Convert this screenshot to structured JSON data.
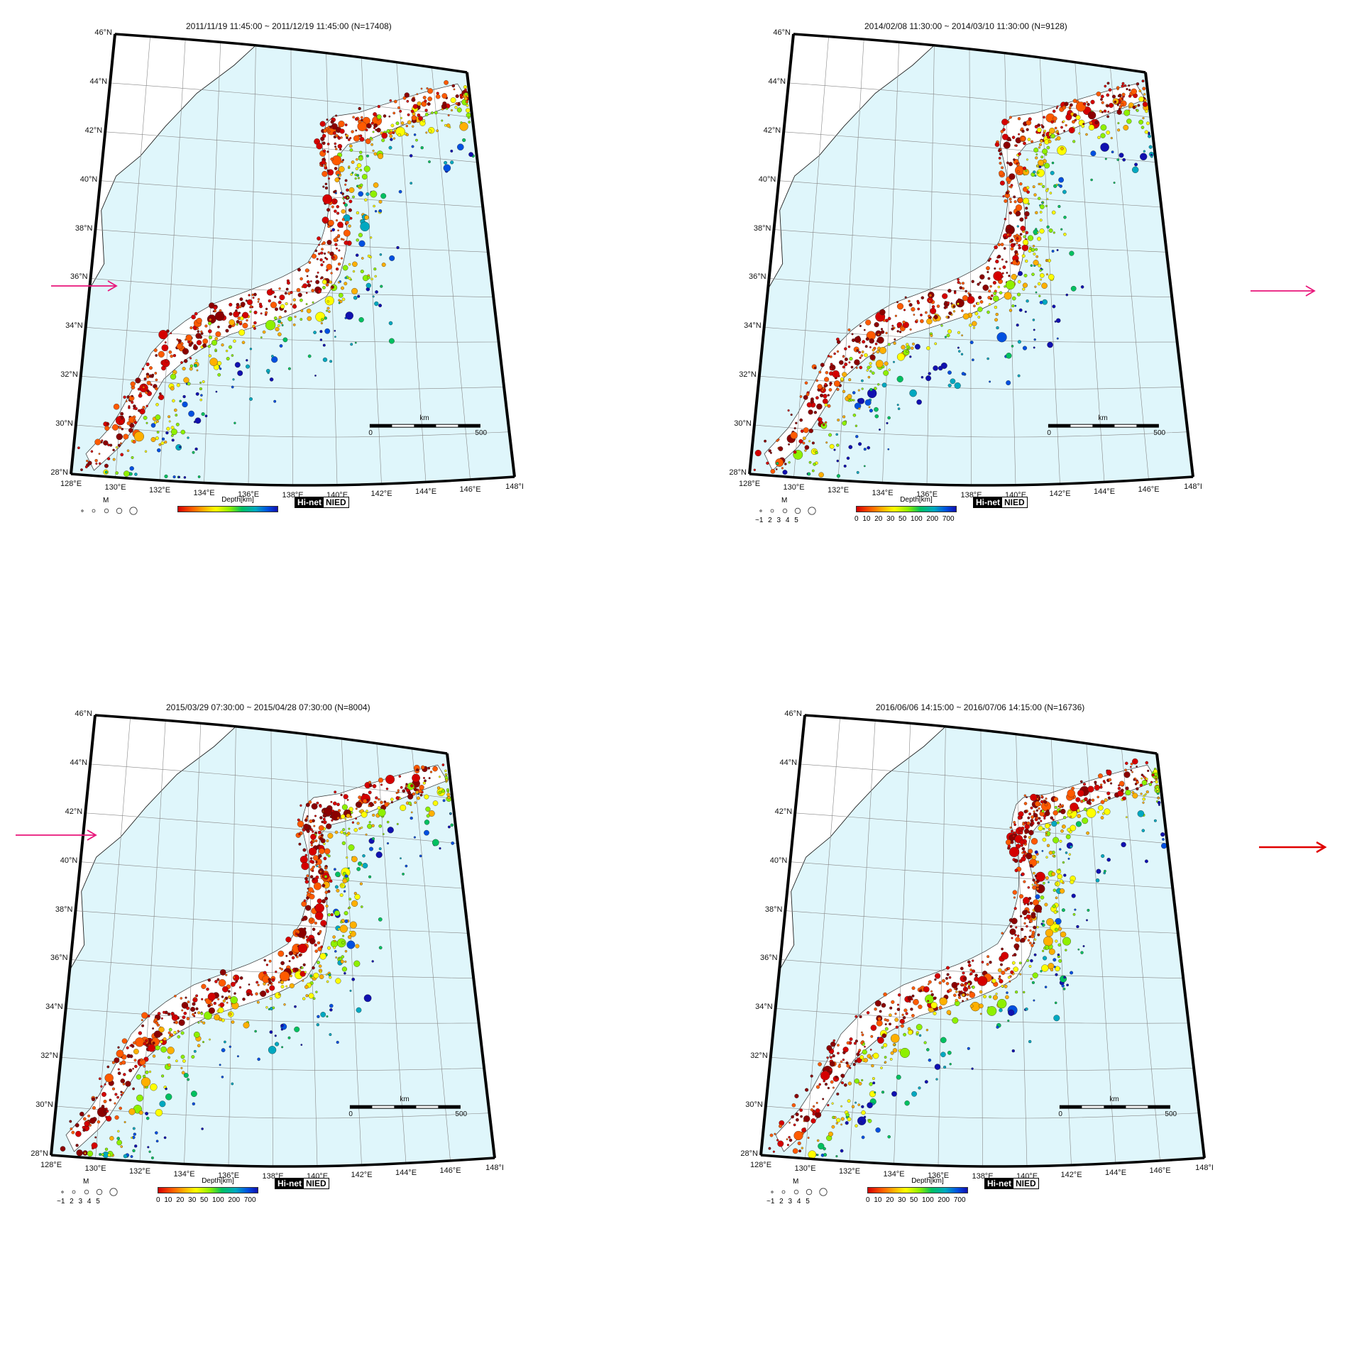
{
  "panels": [
    {
      "title": "2011/11/19 11:45:00 ~ 2011/12/19 11:45:00 (N=17408)",
      "legend_values": "",
      "depth_ticks": ""
    },
    {
      "title": "2014/02/08 11:30:00 ~ 2014/03/10 11:30:00 (N=9128)",
      "legend_values": "~1 2 3 4 5",
      "depth_ticks": "0 10 20 30 50 100 200 700"
    },
    {
      "title": "2015/03/29 07:30:00 ~ 2015/04/28 07:30:00 (N=8004)",
      "legend_values": "~1 2 3 4 5",
      "depth_ticks": "0 10 20 30 50 100 200 700"
    },
    {
      "title": "2016/06/06 14:15:00 ~ 2016/07/06 14:15:00 (N=16736)",
      "legend_values": "~1 2 3 4 5",
      "depth_ticks": "0 10 20 30 50 100 200 700"
    }
  ],
  "lat_labels": [
    "46°N",
    "44°N",
    "42°N",
    "40°N",
    "38°N",
    "36°N",
    "34°N",
    "32°N",
    "30°N",
    "28°N"
  ],
  "lon_labels": [
    "128°E",
    "130°E",
    "132°E",
    "134°E",
    "136°E",
    "138°E",
    "140°E",
    "142°E",
    "144°E",
    "146°E",
    "148°I"
  ],
  "legend": {
    "magnitude_label": "M",
    "depth_label": "Depth[km]",
    "logo_hi": "Hi-net",
    "logo_nied": "NIED",
    "scale_unit": "km",
    "scale_start": "0",
    "scale_end": "500"
  },
  "colors": {
    "sea": "#dff6fb",
    "land": "#ffffff",
    "arrow_pink": "#e8157a",
    "arrow_red": "#e00000",
    "depth_palette": [
      "#8b0000",
      "#d40000",
      "#ff5a00",
      "#ffb000",
      "#ffff00",
      "#8ef000",
      "#00c060",
      "#00a8c0",
      "#0050e0",
      "#1010b0"
    ]
  }
}
